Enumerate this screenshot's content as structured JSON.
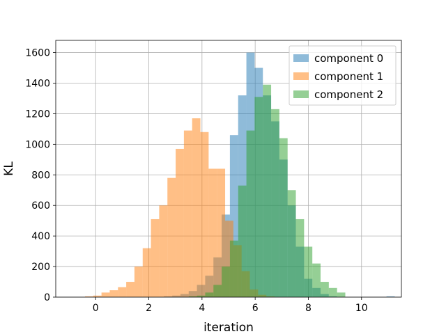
{
  "chart_data": {
    "type": "histogram",
    "xlabel": "iteration",
    "ylabel": "KL",
    "xlim": [
      -1.5,
      11.5
    ],
    "ylim": [
      0,
      1680
    ],
    "xticks": [
      0,
      2,
      4,
      6,
      8,
      10
    ],
    "yticks": [
      0,
      200,
      400,
      600,
      800,
      1000,
      1200,
      1400,
      1600
    ],
    "grid": true,
    "legend_position": "top-right",
    "series": [
      {
        "name": "component 0",
        "color": "#1f77b4",
        "opacity": 0.5,
        "bin_edges": [
          2.57,
          2.88,
          3.19,
          3.5,
          3.81,
          4.12,
          4.43,
          4.74,
          5.05,
          5.36,
          5.67,
          5.98,
          6.29,
          6.6,
          6.91,
          7.22,
          7.53,
          7.84,
          8.15,
          8.46,
          8.77,
          9.08,
          9.39,
          9.7,
          10.01,
          10.32,
          10.63,
          10.94,
          11.25
        ],
        "counts": [
          5,
          10,
          20,
          40,
          80,
          140,
          260,
          540,
          1060,
          1320,
          1600,
          1500,
          1320,
          1150,
          900,
          600,
          330,
          120,
          60,
          20,
          5,
          0,
          0,
          0,
          0,
          0,
          0,
          5
        ]
      },
      {
        "name": "component 1",
        "color": "#ff7f0e",
        "opacity": 0.5,
        "bin_edges": [
          -0.4,
          -0.09,
          0.22,
          0.53,
          0.84,
          1.15,
          1.46,
          1.77,
          2.08,
          2.39,
          2.7,
          3.01,
          3.32,
          3.63,
          3.94,
          4.25,
          4.56,
          4.87,
          5.18,
          5.49,
          5.8,
          6.11,
          6.42,
          6.73
        ],
        "counts": [
          5,
          10,
          30,
          45,
          65,
          100,
          200,
          320,
          510,
          600,
          780,
          970,
          1090,
          1170,
          1080,
          840,
          840,
          500,
          340,
          170,
          50,
          15,
          5
        ]
      },
      {
        "name": "component 2",
        "color": "#2ca02c",
        "opacity": 0.5,
        "bin_edges": [
          3.5,
          3.81,
          4.12,
          4.43,
          4.74,
          5.05,
          5.36,
          5.67,
          5.98,
          6.29,
          6.6,
          6.91,
          7.22,
          7.53,
          7.84,
          8.15,
          8.46,
          8.77,
          9.08,
          9.39
        ],
        "counts": [
          5,
          10,
          30,
          80,
          200,
          370,
          730,
          1090,
          1310,
          1390,
          1230,
          1040,
          700,
          510,
          330,
          220,
          100,
          60,
          30
        ]
      }
    ]
  }
}
